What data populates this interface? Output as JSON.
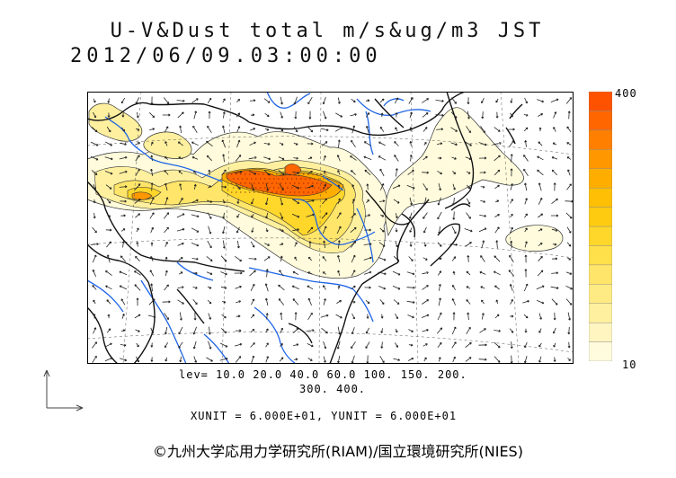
{
  "title": "U-V&Dust total m/s&ug/m3 JST",
  "datetime": "2012/06/09.03:00:00",
  "colorbar": {
    "max_label": "400",
    "min_label": "10",
    "colors": [
      "#fffbdc",
      "#fff5c1",
      "#fff09f",
      "#ffeb84",
      "#ffe569",
      "#ffdf4a",
      "#ffd62a",
      "#ffcb10",
      "#ffbf05",
      "#ffae00",
      "#ff9800",
      "#ff7f00",
      "#ff6600",
      "#ff5200"
    ]
  },
  "levels_line1": "lev= 10.0 20.0 40.0 60.0 100. 150. 200.",
  "levels_line2": "300. 400.",
  "units_line": "XUNIT = 6.000E+01, YUNIT = 6.000E+01",
  "credit": "©九州大学応用力学研究所(RIAM)/国立環境研究所(NIES)",
  "colors": {
    "coast": "#111111",
    "river": "#1e64e6",
    "grid": "#555555",
    "arrow": "#222222"
  }
}
